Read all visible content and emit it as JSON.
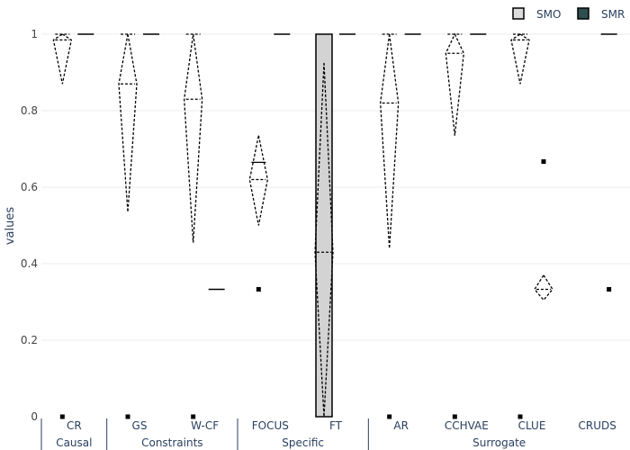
{
  "chart_data": {
    "type": "violin",
    "ylabel": "values",
    "ylim": [
      0,
      1
    ],
    "yticks": [
      0,
      0.2,
      0.4,
      0.6,
      0.8,
      1
    ],
    "ytick_labels": [
      "0",
      "0.2",
      "0.4",
      "0.6",
      "0.8",
      "1"
    ],
    "grid": true,
    "legend_position": "top-right",
    "categories": [
      "CR",
      "GS",
      "W-CF",
      "FOCUS",
      "FT",
      "AR",
      "CCHVAE",
      "CLUE",
      "CRUDS"
    ],
    "groups": [
      {
        "name": "Causal",
        "categories": [
          "CR"
        ]
      },
      {
        "name": "Constraints",
        "categories": [
          "GS",
          "W-CF"
        ]
      },
      {
        "name": "Specific",
        "categories": [
          "FOCUS",
          "FT"
        ]
      },
      {
        "name": "Surrogate",
        "categories": [
          "AR",
          "CCHVAE",
          "CLUE",
          "CRUDS"
        ]
      }
    ],
    "series": [
      {
        "name": "SMO",
        "fill_color": "#dddddd",
        "line_color": "#000000",
        "violins": [
          {
            "category": "CR",
            "min": 0.87,
            "max": 1.0,
            "median": 0.985,
            "mean": 0.99,
            "box_q1": 0.985,
            "box_q3": 1.0,
            "outliers": [
              0.0
            ]
          },
          {
            "category": "GS",
            "min": 0.535,
            "max": 1.0,
            "median": 0.87,
            "mean": 0.87,
            "box_q1": 0.87,
            "box_q3": 1.0,
            "outliers": [
              0.0
            ]
          },
          {
            "category": "W-CF",
            "min": 0.455,
            "max": 1.0,
            "median": 0.83,
            "mean": 0.83,
            "box_q1": 0.83,
            "box_q3": 1.0,
            "outliers": [
              0.0
            ]
          },
          {
            "category": "FOCUS",
            "min": 0.5,
            "max": 0.735,
            "median": 0.62,
            "mean": 0.665,
            "box_q1": 0.62,
            "box_q3": 0.665,
            "outliers": [
              0.333
            ]
          },
          {
            "category": "FT",
            "min": 0.0,
            "max": 0.925,
            "median": 0.43,
            "mean": 0.43,
            "box_q1": 0.0,
            "box_q3": 1.0,
            "outliers": []
          },
          {
            "category": "AR",
            "min": 0.44,
            "max": 1.0,
            "median": 0.82,
            "mean": 0.82,
            "box_q1": 0.82,
            "box_q3": 1.0,
            "outliers": [
              0.0
            ]
          },
          {
            "category": "CCHVAE",
            "min": 0.735,
            "max": 1.0,
            "median": 0.95,
            "mean": 0.95,
            "box_q1": 0.95,
            "box_q3": 1.0,
            "outliers": [
              0.0
            ]
          },
          {
            "category": "CLUE",
            "min": 0.87,
            "max": 1.0,
            "median": 0.985,
            "mean": 0.99,
            "box_q1": 0.985,
            "box_q3": 1.0,
            "outliers": [
              0.0
            ]
          },
          {
            "category": "CRUDS",
            "min": null,
            "max": null,
            "median": null,
            "mean": null,
            "box_q1": null,
            "box_q3": null,
            "outliers": []
          }
        ]
      },
      {
        "name": "SMR",
        "fill_color": "#2f4f4f",
        "line_color": "#000000",
        "violins": [
          {
            "category": "CR",
            "min": 1.0,
            "max": 1.0,
            "median": 1.0,
            "mean": 1.0,
            "outliers": []
          },
          {
            "category": "GS",
            "min": 1.0,
            "max": 1.0,
            "median": 1.0,
            "mean": 1.0,
            "outliers": []
          },
          {
            "category": "W-CF",
            "min": 0.333,
            "max": 0.333,
            "median": 0.333,
            "mean": 0.333,
            "outliers": []
          },
          {
            "category": "FOCUS",
            "min": 1.0,
            "max": 1.0,
            "median": 1.0,
            "mean": 1.0,
            "outliers": []
          },
          {
            "category": "FT",
            "min": 1.0,
            "max": 1.0,
            "median": 1.0,
            "mean": 1.0,
            "outliers": []
          },
          {
            "category": "AR",
            "min": 1.0,
            "max": 1.0,
            "median": 1.0,
            "mean": 1.0,
            "outliers": []
          },
          {
            "category": "CCHVAE",
            "min": 1.0,
            "max": 1.0,
            "median": 1.0,
            "mean": 1.0,
            "outliers": []
          },
          {
            "category": "CLUE",
            "min": 0.305,
            "max": 0.37,
            "median": 0.333,
            "mean": 0.333,
            "outliers": [
              0.667
            ]
          },
          {
            "category": "CRUDS",
            "min": 1.0,
            "max": 1.0,
            "median": 1.0,
            "mean": 1.0,
            "outliers": [
              0.333
            ]
          }
        ]
      }
    ]
  }
}
